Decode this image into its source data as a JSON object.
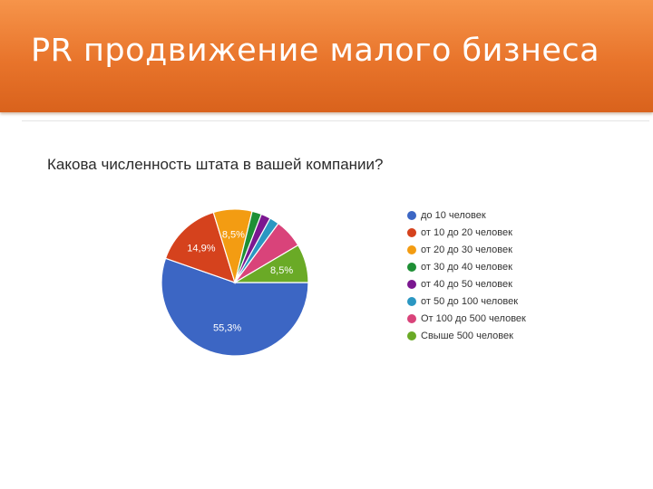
{
  "slide": {
    "title": "PR продвижение малого бизнеса"
  },
  "chart_data": {
    "type": "pie",
    "title": "Какова численность штата в вашей компании?",
    "legend_position": "right",
    "slices": [
      {
        "label": "до 10 человек",
        "value": 55.3,
        "display": "55,3%",
        "color": "#3c66c4"
      },
      {
        "label": "от 10 до 20 человек",
        "value": 14.9,
        "display": "14,9%",
        "color": "#d5421d"
      },
      {
        "label": "от 20 до 30 человек",
        "value": 8.5,
        "display": "8,5%",
        "color": "#f39c12"
      },
      {
        "label": "от 30 до 40 человек",
        "value": 2.1,
        "display": "",
        "color": "#1e8f35"
      },
      {
        "label": "от 40 до 50 человек",
        "value": 2.1,
        "display": "",
        "color": "#7b1790"
      },
      {
        "label": "от 50 до 100 человек",
        "value": 2.1,
        "display": "",
        "color": "#2b97c2"
      },
      {
        "label": "От 100 до 500 человек",
        "value": 6.4,
        "display": "",
        "color": "#d9437a"
      },
      {
        "label": "Свыше 500 человек",
        "value": 8.5,
        "display": "8,5%",
        "color": "#6aaa26"
      }
    ]
  }
}
